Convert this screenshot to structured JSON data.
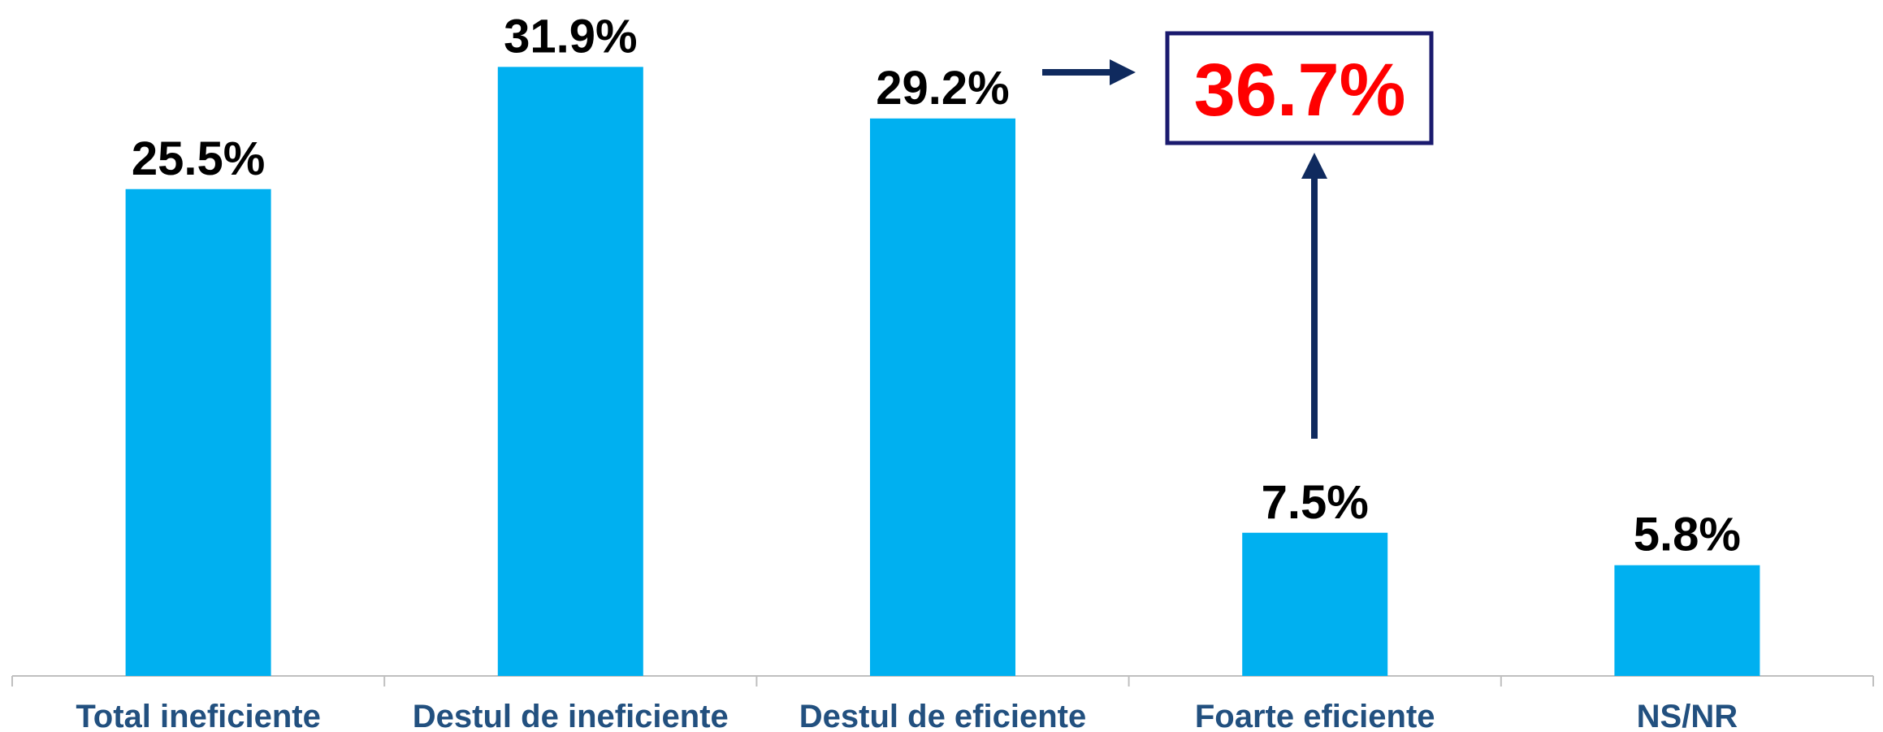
{
  "chart_data": {
    "type": "bar",
    "categories": [
      "Total ineficiente",
      "Destul de ineficiente",
      "Destul de eficiente",
      "Foarte eficiente",
      "NS/NR"
    ],
    "values": [
      25.5,
      31.9,
      29.2,
      7.5,
      5.8
    ],
    "value_labels": [
      "25.5%",
      "31.9%",
      "29.2%",
      "7.5%",
      "5.8%"
    ],
    "color": "#00b0f0",
    "annotation": "36.7%"
  }
}
